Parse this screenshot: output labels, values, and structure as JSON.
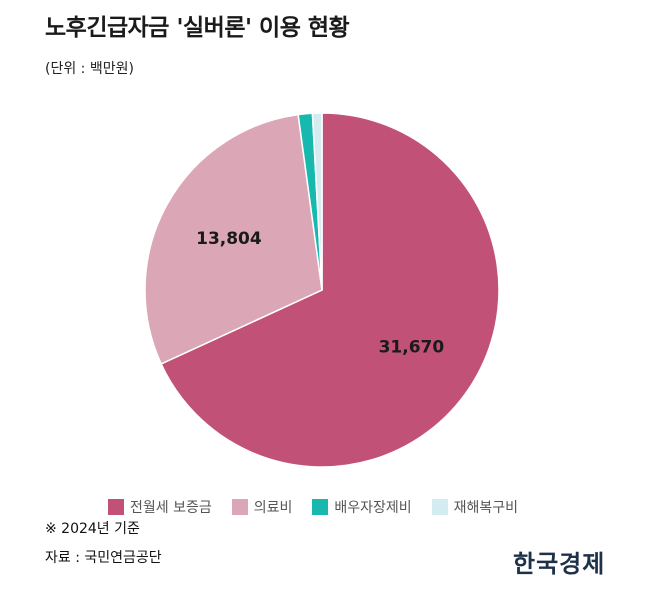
{
  "title": "노후긴급자금 '실버론' 이용 현황",
  "unit_label": "(단위 : 백만원)",
  "note": "※ 2024년 기준",
  "source": "자료 : 국민연금공단",
  "logo": "한국경제",
  "chart_data": {
    "type": "pie",
    "title": "노후긴급자금 '실버론' 이용 현황",
    "unit": "백만원",
    "start_angle_deg": 0,
    "direction": "clockwise",
    "legend_position": "bottom",
    "slices": [
      {
        "label": "전월세 보증금",
        "value": 31670,
        "data_label": "31,670",
        "color": "#c25178"
      },
      {
        "label": "의료비",
        "value": 13804,
        "data_label": "13,804",
        "color": "#dba6b6"
      },
      {
        "label": "배우자장제비",
        "value": 600,
        "data_label": "",
        "color": "#17b8ad"
      },
      {
        "label": "재해복구비",
        "value": 400,
        "data_label": "",
        "color": "#d3ecf2"
      }
    ]
  }
}
